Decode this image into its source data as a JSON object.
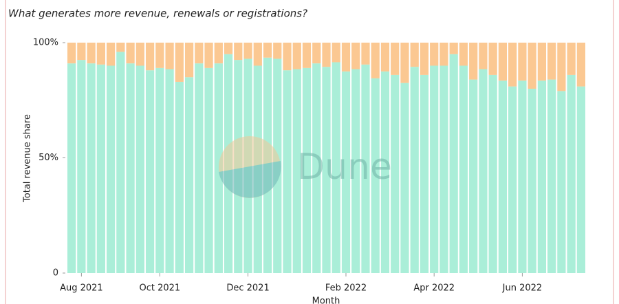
{
  "chart_data": {
    "type": "stacked_bar",
    "subtitle": "What generates more revenue, renewals or registrations?",
    "y_label": "Total revenue share",
    "x_label": "Month",
    "watermark": "Dune",
    "categories": [
      null,
      "Aug 2021",
      null,
      null,
      null,
      null,
      null,
      null,
      null,
      "Oct 2021",
      null,
      null,
      null,
      null,
      null,
      null,
      null,
      null,
      "Dec 2021",
      null,
      null,
      null,
      null,
      null,
      null,
      null,
      null,
      null,
      "Feb 2022",
      null,
      null,
      null,
      null,
      null,
      null,
      null,
      null,
      "Apr 2022",
      null,
      null,
      null,
      null,
      null,
      null,
      null,
      null,
      "Jun 2022",
      null,
      null,
      null,
      null,
      null,
      null
    ],
    "series": [
      {
        "color": "#aaeed8",
        "values": [
          91,
          92.5,
          91,
          90.5,
          90,
          96,
          91,
          90,
          88,
          89,
          88.5,
          83,
          85,
          91,
          89,
          91,
          95,
          92.5,
          93,
          90,
          93.5,
          93,
          88,
          88.5,
          89,
          91,
          89.5,
          91.5,
          87.5,
          88.5,
          90.5,
          84.5,
          87.5,
          86,
          82.5,
          89.5,
          86,
          90,
          90,
          95,
          90,
          84,
          88.5,
          86,
          83.5,
          81,
          83.5,
          80,
          83.5,
          84,
          79,
          86,
          81
        ]
      },
      {
        "color": "#fbc892",
        "values": [
          9,
          7.5,
          9,
          9.5,
          10,
          4,
          9,
          10,
          12,
          11,
          11.5,
          17,
          15,
          9,
          11,
          9,
          5,
          7.5,
          7,
          10,
          6.5,
          7,
          12,
          11.5,
          11,
          9,
          10.5,
          8.5,
          12.5,
          11.5,
          9.5,
          15.5,
          12.5,
          14,
          17.5,
          10.5,
          14,
          10,
          10,
          5,
          10,
          16,
          11.5,
          14,
          16.5,
          19,
          16.5,
          20,
          16.5,
          16,
          21,
          14,
          19
        ]
      }
    ],
    "ylim": [
      0,
      100
    ],
    "yticks": [
      0,
      {
        "value": 50,
        "label": "50%"
      },
      {
        "value": 100,
        "label": "100%"
      }
    ]
  }
}
